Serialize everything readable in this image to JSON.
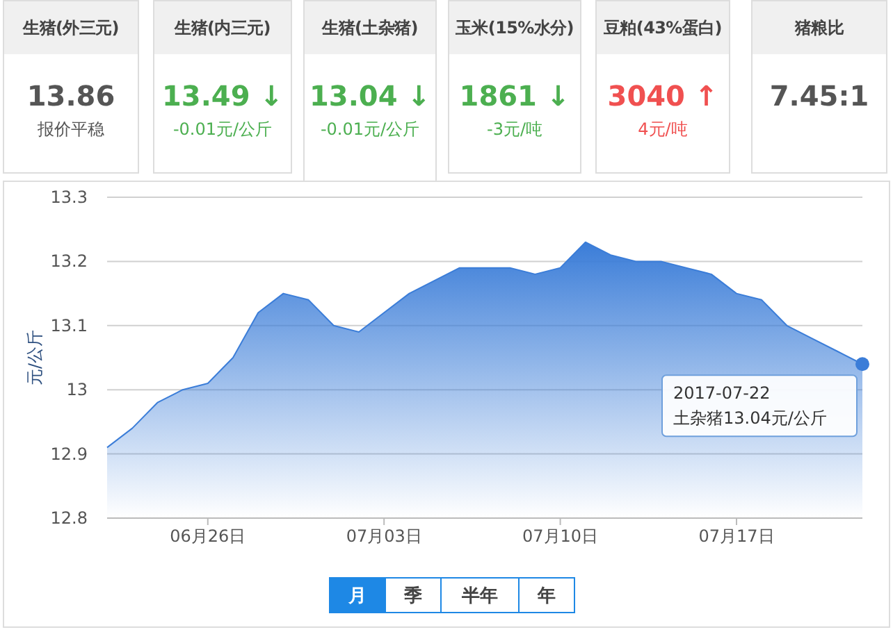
{
  "chart_data": [
    {
      "type": "other",
      "title": "生猪(外三元)",
      "annotations": [
        "13.86",
        "报价平稳"
      ],
      "color": "#555555"
    },
    {
      "type": "other",
      "title": "生猪(内三元)",
      "annotations": [
        "13.49 ↓",
        "-0.01元/公斤"
      ],
      "color": "#4caf50"
    },
    {
      "type": "other",
      "title": "生猪(土杂猪)",
      "annotations": [
        "13.04 ↓",
        "-0.01元/公斤"
      ],
      "color": "#4caf50"
    },
    {
      "type": "other",
      "title": "玉米(15%水分)",
      "annotations": [
        "1861 ↓",
        "-3元/吨"
      ],
      "color": "#4caf50"
    },
    {
      "type": "other",
      "title": "豆粕(43%蛋白)",
      "annotations": [
        "3040 ↑",
        "4元/吨"
      ],
      "color": "#f05050"
    },
    {
      "type": "other",
      "title": "猪粮比",
      "annotations": [
        "7.45:1"
      ],
      "color": "#555555"
    },
    {
      "type": "area",
      "ylabel": "元/公斤",
      "x": [
        "2017-06-22",
        "2017-06-23",
        "2017-06-24",
        "2017-06-25",
        "2017-06-26",
        "2017-06-27",
        "2017-06-28",
        "2017-06-29",
        "2017-06-30",
        "2017-07-01",
        "2017-07-02",
        "2017-07-03",
        "2017-07-04",
        "2017-07-05",
        "2017-07-06",
        "2017-07-07",
        "2017-07-08",
        "2017-07-09",
        "2017-07-10",
        "2017-07-11",
        "2017-07-12",
        "2017-07-13",
        "2017-07-14",
        "2017-07-15",
        "2017-07-16",
        "2017-07-17",
        "2017-07-18",
        "2017-07-19",
        "2017-07-20",
        "2017-07-21",
        "2017-07-22"
      ],
      "series": [
        {
          "color": "#3b7dd8",
          "values": [
            12.91,
            12.94,
            12.98,
            13.0,
            13.01,
            13.05,
            13.12,
            13.15,
            13.14,
            13.1,
            13.09,
            13.12,
            13.15,
            13.17,
            13.19,
            13.19,
            13.19,
            13.18,
            13.19,
            13.23,
            13.21,
            13.2,
            13.2,
            13.19,
            13.18,
            13.15,
            13.14,
            13.1,
            13.08,
            13.06,
            13.04
          ]
        }
      ],
      "xlim": [
        "2017-06-22",
        "2017-07-22"
      ],
      "xticks": [
        {
          "value": "2017-06-26",
          "label": "06月26日"
        },
        {
          "value": "2017-07-03",
          "label": "07月03日"
        },
        {
          "value": "2017-07-10",
          "label": "07月10日"
        },
        {
          "value": "2017-07-17",
          "label": "07月17日"
        }
      ],
      "ylim": [
        12.8,
        13.3
      ],
      "yticks": [
        12.8,
        12.9,
        13,
        13.1,
        13.2,
        13.3
      ],
      "grid": "y",
      "annotations": [
        {
          "text": "2017-07-22\n土杂猪13.04元/公斤",
          "x": "2017-07-22",
          "y": 13.04
        },
        "月",
        "季",
        "半年",
        "年"
      ]
    }
  ]
}
